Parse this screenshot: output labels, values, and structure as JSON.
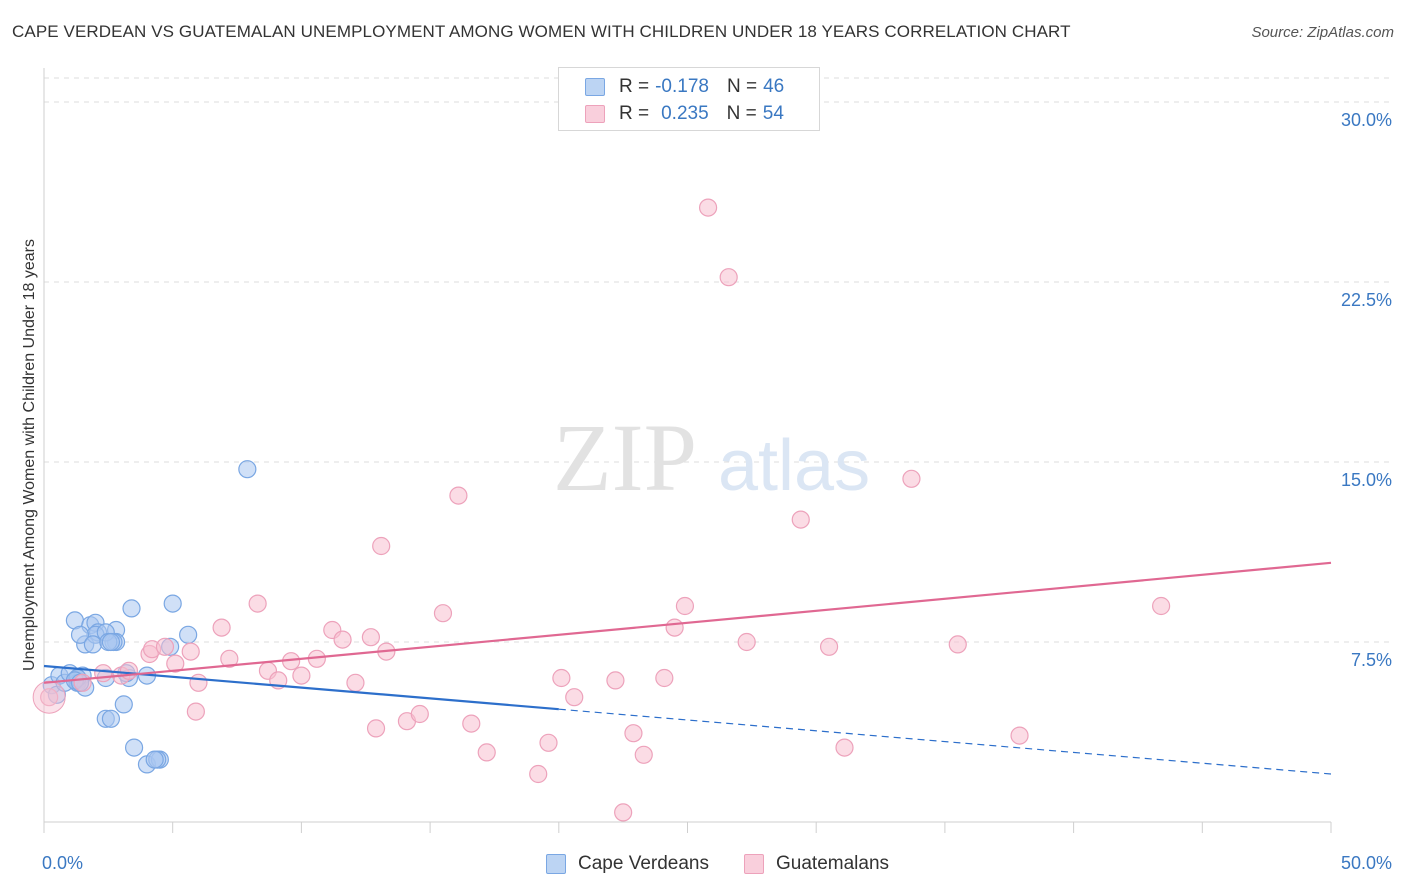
{
  "title": "CAPE VERDEAN VS GUATEMALAN UNEMPLOYMENT AMONG WOMEN WITH CHILDREN UNDER 18 YEARS CORRELATION CHART",
  "source": "Source: ZipAtlas.com",
  "watermark": {
    "zip": "ZIP",
    "atlas": "atlas"
  },
  "legend": {
    "r_label": "R =",
    "n_label": "N =",
    "rows": [
      {
        "r": "-0.178",
        "n": "46",
        "color": "#6a9fe0"
      },
      {
        "r": "0.235",
        "n": "54",
        "color": "#f08fb0"
      }
    ]
  },
  "colors": {
    "blue_fill": "#a9c7f0",
    "blue_stroke": "#7aa7e3",
    "blue_line": "#2d6fcb",
    "pink_fill": "#f7bfd0",
    "pink_stroke": "#eda2bb",
    "pink_line": "#e06892",
    "tick_text": "#3a78c2",
    "grid": "#dedede"
  },
  "chart_data": {
    "type": "scatter",
    "title": "CAPE VERDEAN VS GUATEMALAN UNEMPLOYMENT AMONG WOMEN WITH CHILDREN UNDER 18 YEARS CORRELATION CHART",
    "xlabel": "",
    "ylabel": "Unemployment Among Women with Children Under 18 years",
    "xlim": [
      0,
      50
    ],
    "ylim": [
      0,
      31
    ],
    "x_ticks": [
      "0.0%",
      "50.0%"
    ],
    "y_ticks": [
      {
        "value": 7.5,
        "label": "7.5%"
      },
      {
        "value": 15.0,
        "label": "15.0%"
      },
      {
        "value": 22.5,
        "label": "22.5%"
      },
      {
        "value": 30.0,
        "label": "30.0%"
      }
    ],
    "grid": true,
    "legend_position": "top-center",
    "series": [
      {
        "name": "Cape Verdeans",
        "color": "#6a9fe0",
        "r": -0.178,
        "n": 46,
        "trend": {
          "x0": 0,
          "y0": 6.5,
          "x1": 20,
          "y1": 4.7,
          "dash_to_x": 50,
          "dash_to_y": 2.0
        },
        "points": [
          [
            0.3,
            5.7
          ],
          [
            0.5,
            5.3
          ],
          [
            0.6,
            6.1
          ],
          [
            0.8,
            5.8
          ],
          [
            1.0,
            6.2
          ],
          [
            1.2,
            8.4
          ],
          [
            1.3,
            5.9
          ],
          [
            1.4,
            5.8
          ],
          [
            1.3,
            5.9
          ],
          [
            1.5,
            6.1
          ],
          [
            1.3,
            6.0
          ],
          [
            1.3,
            5.8
          ],
          [
            1.6,
            5.6
          ],
          [
            1.8,
            8.2
          ],
          [
            2.0,
            8.3
          ],
          [
            1.3,
            6.0
          ],
          [
            1.2,
            5.9
          ],
          [
            1.4,
            5.8
          ],
          [
            2.8,
            8.0
          ],
          [
            2.8,
            7.5
          ],
          [
            2.7,
            7.5
          ],
          [
            1.6,
            7.4
          ],
          [
            2.1,
            7.9
          ],
          [
            2.0,
            7.8
          ],
          [
            1.4,
            7.8
          ],
          [
            1.9,
            7.4
          ],
          [
            2.4,
            7.9
          ],
          [
            2.4,
            6.0
          ],
          [
            2.5,
            7.5
          ],
          [
            2.6,
            7.5
          ],
          [
            3.3,
            6.0
          ],
          [
            3.2,
            6.2
          ],
          [
            4.0,
            6.1
          ],
          [
            3.1,
            4.9
          ],
          [
            2.4,
            4.3
          ],
          [
            2.6,
            4.3
          ],
          [
            3.5,
            3.1
          ],
          [
            4.0,
            2.4
          ],
          [
            4.5,
            2.6
          ],
          [
            4.4,
            2.6
          ],
          [
            4.3,
            2.6
          ],
          [
            3.4,
            8.9
          ],
          [
            5.0,
            9.1
          ],
          [
            4.9,
            7.3
          ],
          [
            5.6,
            7.8
          ],
          [
            7.9,
            14.7
          ]
        ]
      },
      {
        "name": "Guatemalans",
        "color": "#f08fb0",
        "r": 0.235,
        "n": 54,
        "trend": {
          "x0": 0,
          "y0": 5.8,
          "x1": 50,
          "y1": 10.8
        },
        "points": [
          [
            0.2,
            5.2
          ],
          [
            1.5,
            5.8
          ],
          [
            2.3,
            6.2
          ],
          [
            3.0,
            6.1
          ],
          [
            3.3,
            6.3
          ],
          [
            4.1,
            7.0
          ],
          [
            4.2,
            7.2
          ],
          [
            4.7,
            7.3
          ],
          [
            5.1,
            6.6
          ],
          [
            5.7,
            7.1
          ],
          [
            6.0,
            5.8
          ],
          [
            5.9,
            4.6
          ],
          [
            6.9,
            8.1
          ],
          [
            7.2,
            6.8
          ],
          [
            8.3,
            9.1
          ],
          [
            8.7,
            6.3
          ],
          [
            9.1,
            5.9
          ],
          [
            9.6,
            6.7
          ],
          [
            10.0,
            6.1
          ],
          [
            10.6,
            6.8
          ],
          [
            11.2,
            8.0
          ],
          [
            11.6,
            7.6
          ],
          [
            12.1,
            5.8
          ],
          [
            12.7,
            7.7
          ],
          [
            12.9,
            3.9
          ],
          [
            13.1,
            11.5
          ],
          [
            13.3,
            7.1
          ],
          [
            14.1,
            4.2
          ],
          [
            14.6,
            4.5
          ],
          [
            15.5,
            8.7
          ],
          [
            16.1,
            13.6
          ],
          [
            16.6,
            4.1
          ],
          [
            17.2,
            2.9
          ],
          [
            19.2,
            2.0
          ],
          [
            19.6,
            3.3
          ],
          [
            20.1,
            6.0
          ],
          [
            20.6,
            5.2
          ],
          [
            22.2,
            5.9
          ],
          [
            22.5,
            0.4
          ],
          [
            22.9,
            3.7
          ],
          [
            23.3,
            2.8
          ],
          [
            24.1,
            6.0
          ],
          [
            24.5,
            8.1
          ],
          [
            24.9,
            9.0
          ],
          [
            25.8,
            25.6
          ],
          [
            26.6,
            22.7
          ],
          [
            27.3,
            7.5
          ],
          [
            29.4,
            12.6
          ],
          [
            30.5,
            7.3
          ],
          [
            31.1,
            3.1
          ],
          [
            33.7,
            14.3
          ],
          [
            35.5,
            7.4
          ],
          [
            37.9,
            3.6
          ],
          [
            43.4,
            9.0
          ]
        ]
      }
    ]
  }
}
